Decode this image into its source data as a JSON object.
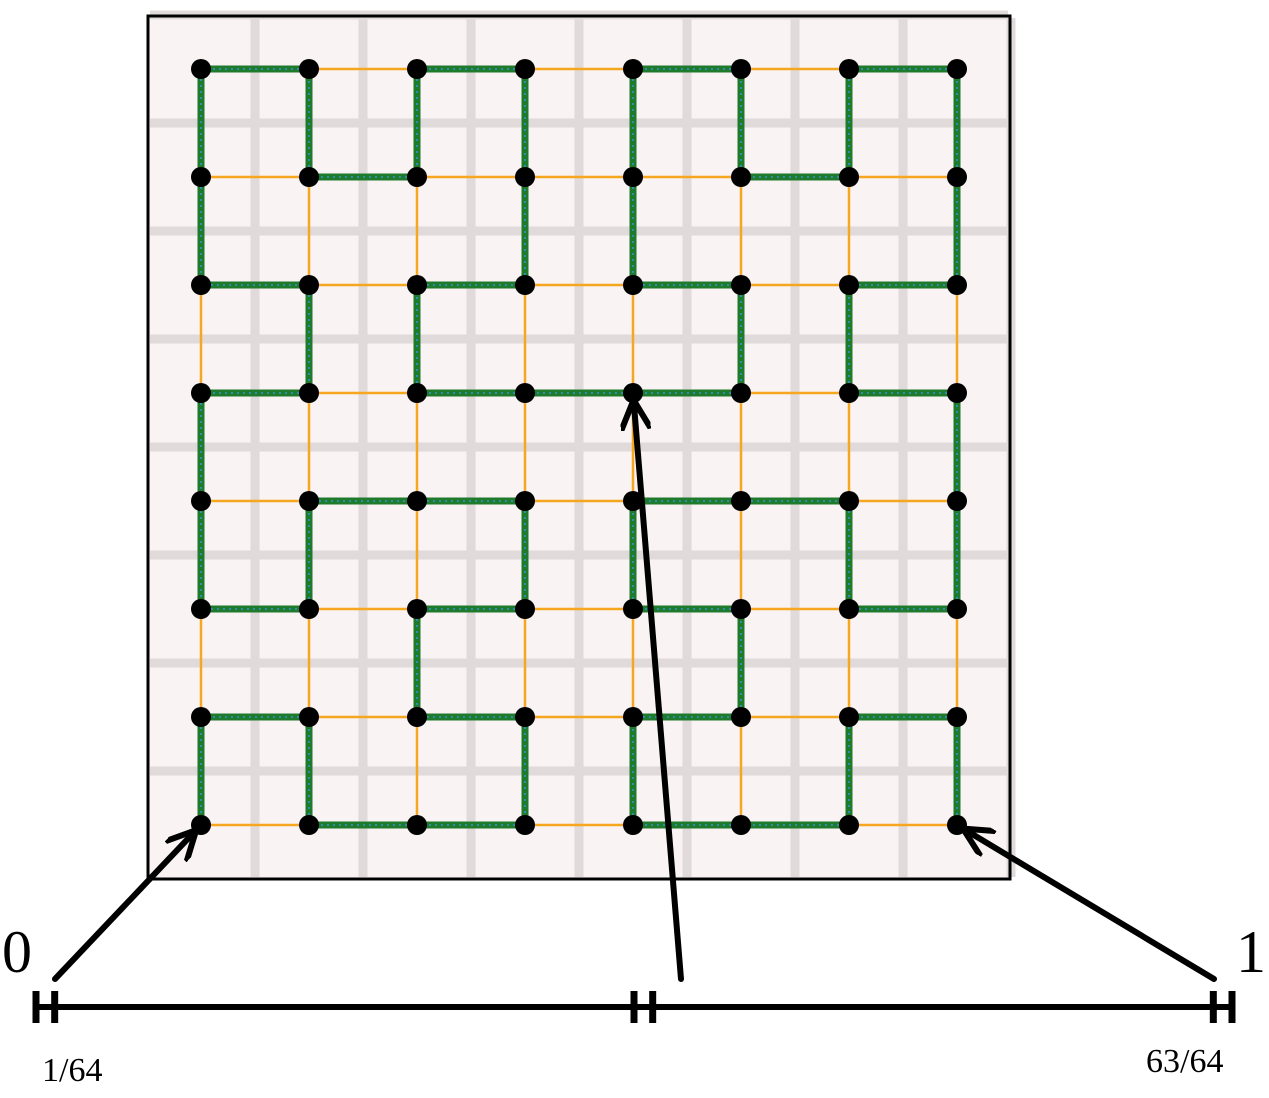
{
  "labels": {
    "start": "0",
    "end": "1",
    "first_tick": "1/64",
    "last_tick": "63/64"
  },
  "grid": {
    "n": 8
  },
  "curve": {
    "type": "hilbert-curve",
    "order": 3,
    "vertex_count": 64
  },
  "number_line": {
    "min": 0,
    "max": 1,
    "ticks": [
      0,
      0.015625,
      0.5,
      0.515625,
      0.984375,
      1
    ]
  },
  "pointers": [
    {
      "from_value": 0,
      "to_cell": [
        0,
        0
      ]
    },
    {
      "from_value": 0.5,
      "to_cell": [
        4,
        4
      ]
    },
    {
      "from_value": 1,
      "to_cell": [
        7,
        0
      ]
    }
  ],
  "colors": {
    "background_panel": "#f9f3f3",
    "cell_grid": "#e1dada",
    "lattice": "#f5a81f",
    "curve": "#1f7a2b",
    "curve_dots": "#2a8fa8",
    "nodes": "#000000",
    "arrows": "#000000",
    "axis": "#000000"
  }
}
